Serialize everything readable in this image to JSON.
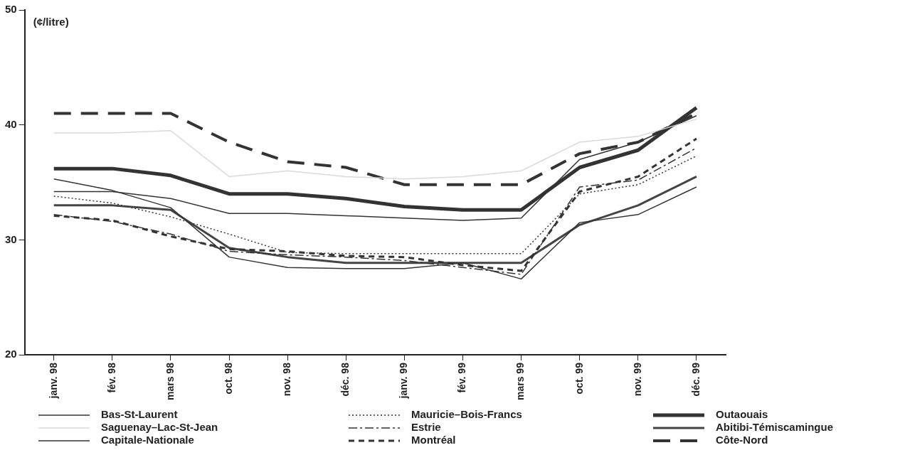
{
  "chart_data": {
    "type": "line",
    "ylabel": "(¢/litre)",
    "categories": [
      "janv. 98",
      "fév. 98",
      "mars 98",
      "oct. 98",
      "nov. 98",
      "déc. 98",
      "janv. 99",
      "fév. 99",
      "mars 99",
      "oct. 99",
      "nov. 99",
      "déc. 99"
    ],
    "ylim": [
      20,
      50
    ],
    "yticks": [
      20,
      30,
      40,
      50
    ],
    "grid": false,
    "legend": "bottom",
    "marker": "none",
    "series": [
      {
        "name": "Bas-St-Laurent",
        "color": "#333333",
        "line_style": "solid",
        "values": [
          35.3,
          34.3,
          32.8,
          28.5,
          27.6,
          27.5,
          27.5,
          28,
          26.6,
          31.5,
          32.2,
          34.6
        ]
      },
      {
        "name": "Saguenay–Lac-St-Jean",
        "color": "#d9d9d9",
        "line_style": "solid",
        "values": [
          39.3,
          39.3,
          39.5,
          35.5,
          36,
          35.5,
          35.3,
          35.5,
          36,
          38.5,
          39,
          40.5
        ]
      },
      {
        "name": "Capitale-Nationale",
        "color": "#333333",
        "line_style": "solid",
        "values": [
          34.2,
          34.2,
          33.6,
          32.3,
          32.3,
          32.1,
          31.9,
          31.7,
          31.9,
          37,
          38.5,
          40.8
        ]
      },
      {
        "name": "Mauricie–Bois-Francs",
        "color": "#333333",
        "line_style": "dotted",
        "values": [
          33.8,
          33.2,
          32,
          30.5,
          28.9,
          28.8,
          28.8,
          28.8,
          28.8,
          34,
          34.8,
          37.3
        ]
      },
      {
        "name": "Estrie",
        "color": "#333333",
        "line_style": "dashdot",
        "values": [
          32.2,
          31.6,
          30.5,
          29,
          28.7,
          28.5,
          28.2,
          27.6,
          27,
          34.6,
          35.2,
          38
        ]
      },
      {
        "name": "Montréal",
        "color": "#333333",
        "line_style": "dashed",
        "values": [
          32.1,
          31.7,
          30.3,
          29.2,
          29,
          28.6,
          28.5,
          27.8,
          27.3,
          34.2,
          35.5,
          38.8
        ]
      },
      {
        "name": "Outaouais",
        "color": "#333333",
        "line_style": "solid",
        "values": [
          36.2,
          36.2,
          35.6,
          34,
          34,
          33.6,
          32.9,
          32.6,
          32.6,
          36.3,
          37.8,
          41.5
        ]
      },
      {
        "name": "Abitibi-Témiscamingue",
        "color": "#444444",
        "line_style": "solid",
        "values": [
          33,
          33,
          32.6,
          29.3,
          28.5,
          28,
          28,
          28,
          28,
          31.3,
          33,
          35.5
        ]
      },
      {
        "name": "Côte-Nord",
        "color": "#333333",
        "line_style": "dashed",
        "values": [
          41,
          41,
          41,
          38.5,
          36.8,
          36.3,
          34.8,
          34.8,
          34.8,
          37.5,
          38.5,
          41
        ]
      }
    ]
  }
}
